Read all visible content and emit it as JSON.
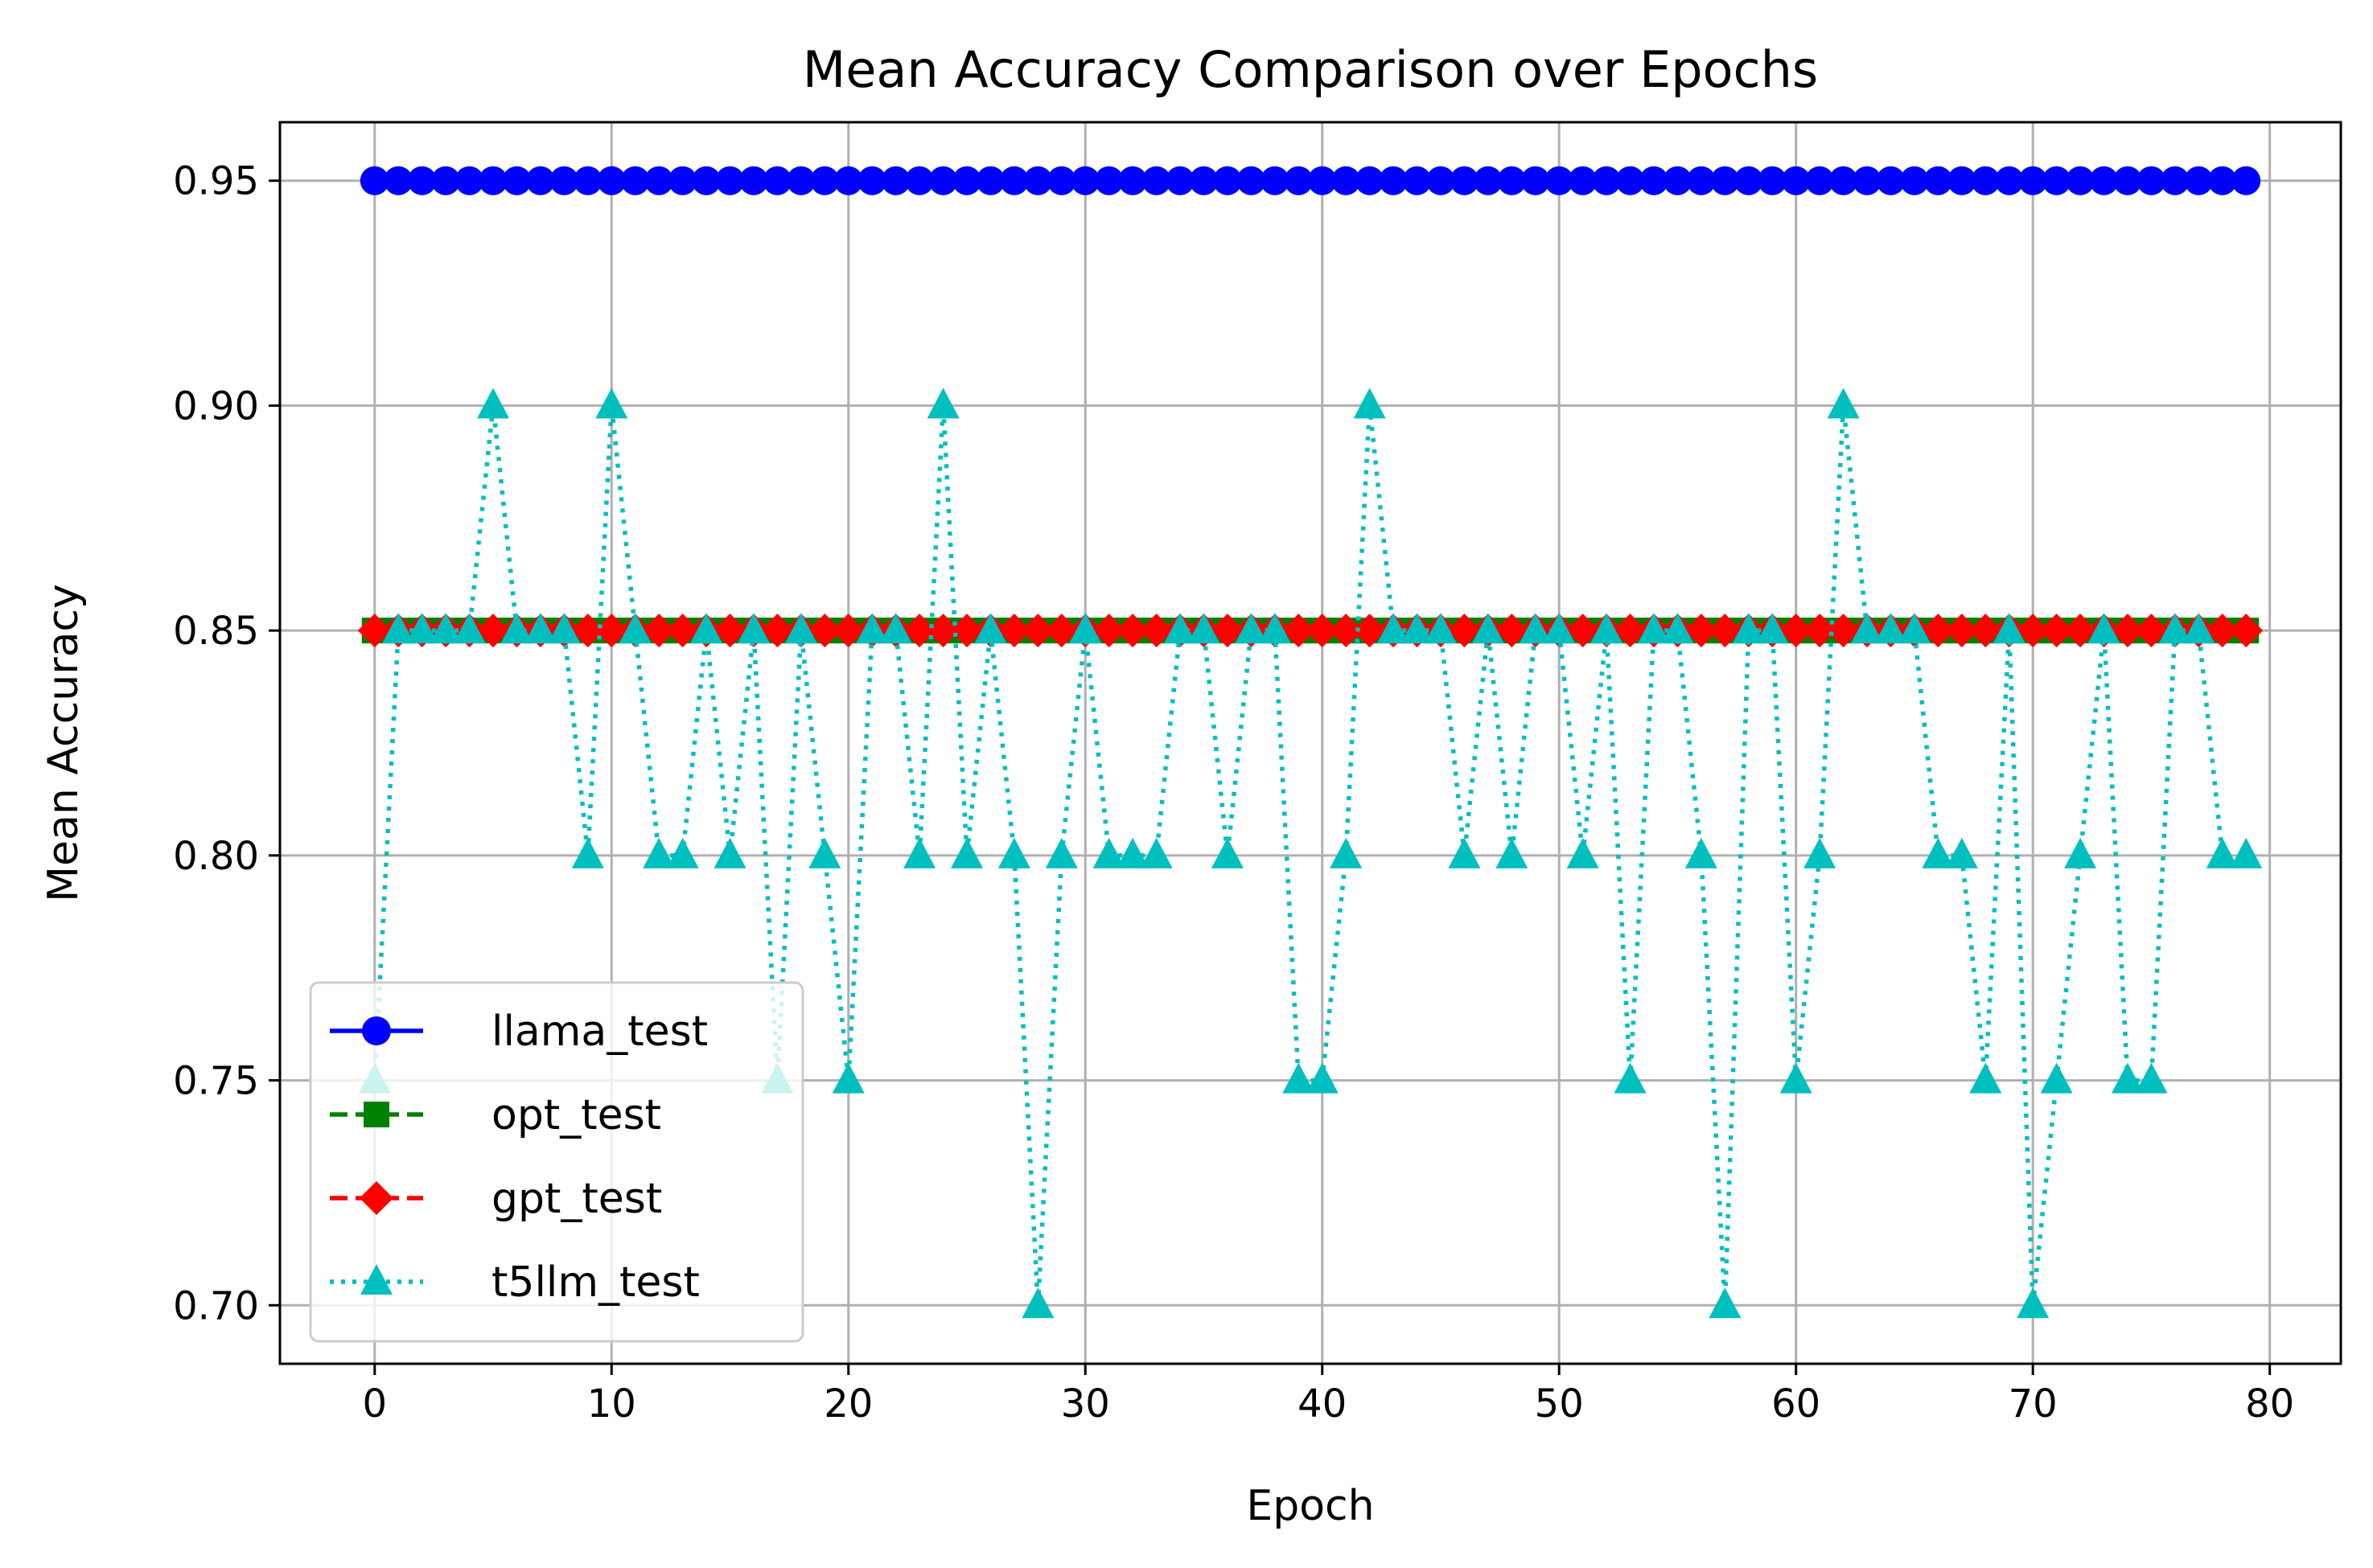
{
  "chart_data": {
    "type": "line",
    "title": "Mean Accuracy Comparison over Epochs",
    "xlabel": "Epoch",
    "ylabel": "Mean Accuracy",
    "xlim": [
      -4,
      83
    ],
    "ylim": [
      0.687,
      0.963
    ],
    "xticks": [
      "0",
      "10",
      "20",
      "30",
      "40",
      "50",
      "60",
      "70",
      "80"
    ],
    "yticks": [
      "0.70",
      "0.75",
      "0.80",
      "0.85",
      "0.90",
      "0.95"
    ],
    "grid": true,
    "legend_position": "lower-left",
    "x": [
      0,
      1,
      2,
      3,
      4,
      5,
      6,
      7,
      8,
      9,
      10,
      11,
      12,
      13,
      14,
      15,
      16,
      17,
      18,
      19,
      20,
      21,
      22,
      23,
      24,
      25,
      26,
      27,
      28,
      29,
      30,
      31,
      32,
      33,
      34,
      35,
      36,
      37,
      38,
      39,
      40,
      41,
      42,
      43,
      44,
      45,
      46,
      47,
      48,
      49,
      50,
      51,
      52,
      53,
      54,
      55,
      56,
      57,
      58,
      59,
      60,
      61,
      62,
      63,
      64,
      65,
      66,
      67,
      68,
      69,
      70,
      71,
      72,
      73,
      74,
      75,
      76,
      77,
      78,
      79
    ],
    "series": [
      {
        "name": "llama_test",
        "color": "#0000ff",
        "linestyle": "solid",
        "marker": "circle",
        "values": [
          0.95,
          0.95,
          0.95,
          0.95,
          0.95,
          0.95,
          0.95,
          0.95,
          0.95,
          0.95,
          0.95,
          0.95,
          0.95,
          0.95,
          0.95,
          0.95,
          0.95,
          0.95,
          0.95,
          0.95,
          0.95,
          0.95,
          0.95,
          0.95,
          0.95,
          0.95,
          0.95,
          0.95,
          0.95,
          0.95,
          0.95,
          0.95,
          0.95,
          0.95,
          0.95,
          0.95,
          0.95,
          0.95,
          0.95,
          0.95,
          0.95,
          0.95,
          0.95,
          0.95,
          0.95,
          0.95,
          0.95,
          0.95,
          0.95,
          0.95,
          0.95,
          0.95,
          0.95,
          0.95,
          0.95,
          0.95,
          0.95,
          0.95,
          0.95,
          0.95,
          0.95,
          0.95,
          0.95,
          0.95,
          0.95,
          0.95,
          0.95,
          0.95,
          0.95,
          0.95,
          0.95,
          0.95,
          0.95,
          0.95,
          0.95,
          0.95,
          0.95,
          0.95,
          0.95,
          0.95
        ]
      },
      {
        "name": "opt_test",
        "color": "#008000",
        "linestyle": "dashed",
        "marker": "square",
        "values": [
          0.85,
          0.85,
          0.85,
          0.85,
          0.85,
          0.85,
          0.85,
          0.85,
          0.85,
          0.85,
          0.85,
          0.85,
          0.85,
          0.85,
          0.85,
          0.85,
          0.85,
          0.85,
          0.85,
          0.85,
          0.85,
          0.85,
          0.85,
          0.85,
          0.85,
          0.85,
          0.85,
          0.85,
          0.85,
          0.85,
          0.85,
          0.85,
          0.85,
          0.85,
          0.85,
          0.85,
          0.85,
          0.85,
          0.85,
          0.85,
          0.85,
          0.85,
          0.85,
          0.85,
          0.85,
          0.85,
          0.85,
          0.85,
          0.85,
          0.85,
          0.85,
          0.85,
          0.85,
          0.85,
          0.85,
          0.85,
          0.85,
          0.85,
          0.85,
          0.85,
          0.85,
          0.85,
          0.85,
          0.85,
          0.85,
          0.85,
          0.85,
          0.85,
          0.85,
          0.85,
          0.85,
          0.85,
          0.85,
          0.85,
          0.85,
          0.85,
          0.85,
          0.85,
          0.85,
          0.85
        ]
      },
      {
        "name": "gpt_test",
        "color": "#ff0000",
        "linestyle": "dashed",
        "marker": "diamond",
        "values": [
          0.85,
          0.85,
          0.85,
          0.85,
          0.85,
          0.85,
          0.85,
          0.85,
          0.85,
          0.85,
          0.85,
          0.85,
          0.85,
          0.85,
          0.85,
          0.85,
          0.85,
          0.85,
          0.85,
          0.85,
          0.85,
          0.85,
          0.85,
          0.85,
          0.85,
          0.85,
          0.85,
          0.85,
          0.85,
          0.85,
          0.85,
          0.85,
          0.85,
          0.85,
          0.85,
          0.85,
          0.85,
          0.85,
          0.85,
          0.85,
          0.85,
          0.85,
          0.85,
          0.85,
          0.85,
          0.85,
          0.85,
          0.85,
          0.85,
          0.85,
          0.85,
          0.85,
          0.85,
          0.85,
          0.85,
          0.85,
          0.85,
          0.85,
          0.85,
          0.85,
          0.85,
          0.85,
          0.85,
          0.85,
          0.85,
          0.85,
          0.85,
          0.85,
          0.85,
          0.85,
          0.85,
          0.85,
          0.85,
          0.85,
          0.85,
          0.85,
          0.85,
          0.85,
          0.85,
          0.85
        ]
      },
      {
        "name": "t5llm_test",
        "color": "#00bfbf",
        "linestyle": "dotted",
        "marker": "triangle",
        "values": [
          0.75,
          0.85,
          0.85,
          0.85,
          0.85,
          0.9,
          0.85,
          0.85,
          0.85,
          0.8,
          0.9,
          0.85,
          0.8,
          0.8,
          0.85,
          0.8,
          0.85,
          0.75,
          0.85,
          0.8,
          0.75,
          0.85,
          0.85,
          0.8,
          0.9,
          0.8,
          0.85,
          0.8,
          0.7,
          0.8,
          0.85,
          0.8,
          0.8,
          0.8,
          0.85,
          0.85,
          0.8,
          0.85,
          0.85,
          0.75,
          0.75,
          0.8,
          0.9,
          0.85,
          0.85,
          0.85,
          0.8,
          0.85,
          0.8,
          0.85,
          0.85,
          0.8,
          0.85,
          0.75,
          0.85,
          0.85,
          0.8,
          0.7,
          0.85,
          0.85,
          0.75,
          0.8,
          0.9,
          0.85,
          0.85,
          0.85,
          0.8,
          0.8,
          0.75,
          0.85,
          0.7,
          0.75,
          0.8,
          0.85,
          0.75,
          0.75,
          0.85,
          0.85,
          0.8,
          0.8
        ]
      }
    ]
  }
}
